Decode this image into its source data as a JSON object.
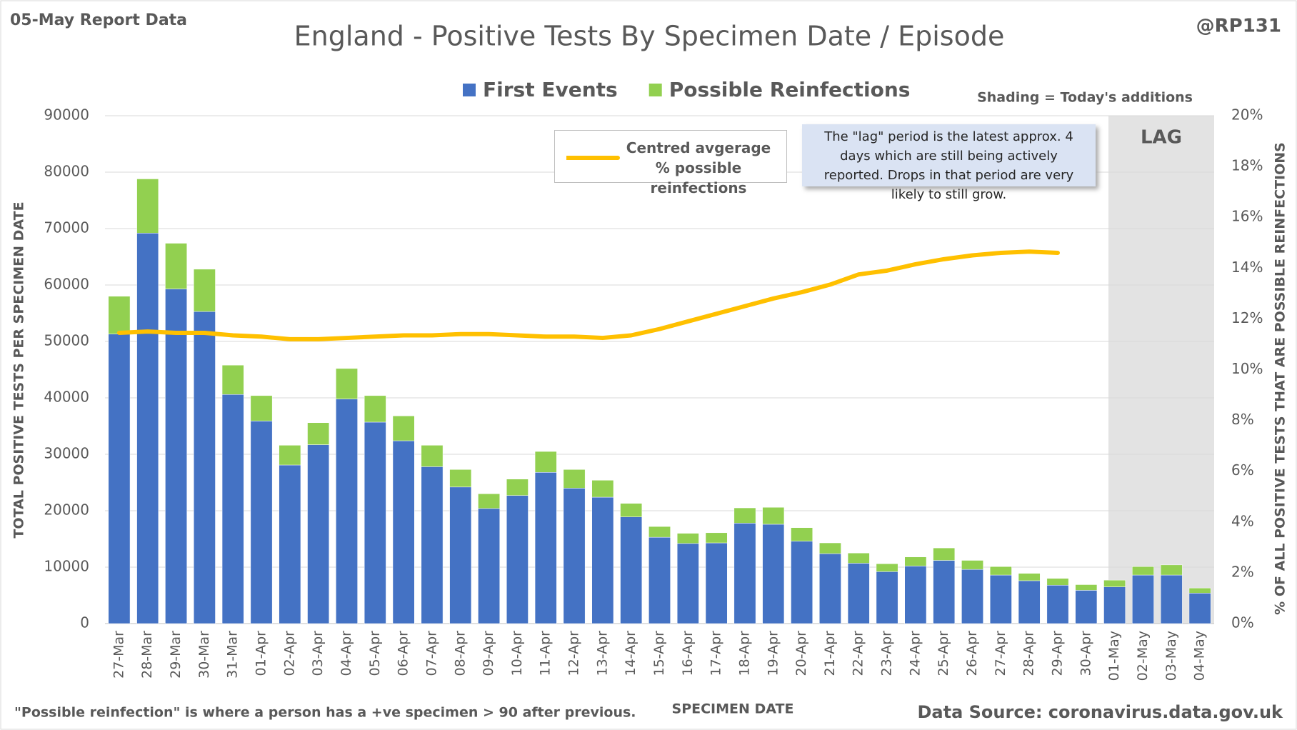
{
  "chart_data": {
    "type": "stacked_bar_line",
    "title": "England - Positive Tests By Specimen Date / Episode",
    "report_label": "05-May Report Data",
    "handle": "@RP131",
    "shading_note": "Shading = Today's additions",
    "lag_label": "LAG",
    "annotation": "The \"lag\" period is the latest approx. 4 days which are still being actively reported. Drops in that period are very likely to still grow.",
    "footnote": "\"Possible reinfection\" is where a person has a +ve specimen > 90 after previous.",
    "source": "Data Source: coronavirus.data.gov.uk",
    "x_label": "SPECIMEN DATE",
    "y_label": "TOTAL POSITIVE TESTS PER SPECIMEN DATE",
    "y2_label": "% OF ALL POSITIVE TESTS THAT ARE POSSIBLE REINFECTIONS",
    "categories": [
      "27-Mar",
      "28-Mar",
      "29-Mar",
      "30-Mar",
      "31-Mar",
      "01-Apr",
      "02-Apr",
      "03-Apr",
      "04-Apr",
      "05-Apr",
      "06-Apr",
      "07-Apr",
      "08-Apr",
      "09-Apr",
      "10-Apr",
      "11-Apr",
      "12-Apr",
      "13-Apr",
      "14-Apr",
      "15-Apr",
      "16-Apr",
      "17-Apr",
      "18-Apr",
      "19-Apr",
      "20-Apr",
      "21-Apr",
      "22-Apr",
      "23-Apr",
      "24-Apr",
      "25-Apr",
      "26-Apr",
      "27-Apr",
      "28-Apr",
      "29-Apr",
      "30-Apr",
      "01-May",
      "02-May",
      "03-May",
      "04-May"
    ],
    "series": [
      {
        "name": "First Events",
        "color": "#4472c4",
        "values": [
          51300,
          69200,
          59300,
          55300,
          40600,
          35900,
          28100,
          31700,
          39800,
          35700,
          32400,
          27800,
          24200,
          20400,
          22700,
          26800,
          24000,
          22400,
          18900,
          15300,
          14200,
          14300,
          17800,
          17600,
          14600,
          12400,
          10700,
          9200,
          10200,
          11200,
          9600,
          8600,
          7600,
          6800,
          5900,
          6500,
          8600,
          8600,
          5400
        ]
      },
      {
        "name": "Possible Reinfections",
        "color": "#92d050",
        "values": [
          6700,
          9600,
          8100,
          7500,
          5200,
          4500,
          3500,
          3900,
          5400,
          4700,
          4400,
          3800,
          3100,
          2600,
          2900,
          3700,
          3300,
          3000,
          2400,
          1900,
          1800,
          1800,
          2700,
          3000,
          2400,
          1900,
          1800,
          1400,
          1600,
          2200,
          1600,
          1500,
          1300,
          1200,
          1000,
          1200,
          1500,
          1800,
          900
        ]
      },
      {
        "name": "Centred avgerage % possible reinfections",
        "color": "#ffc000",
        "axis": "y2",
        "values": [
          11.45,
          11.5,
          11.45,
          11.45,
          11.35,
          11.3,
          11.2,
          11.2,
          11.25,
          11.3,
          11.35,
          11.35,
          11.4,
          11.4,
          11.35,
          11.3,
          11.3,
          11.25,
          11.35,
          11.6,
          11.9,
          12.2,
          12.5,
          12.8,
          13.05,
          13.35,
          13.75,
          13.9,
          14.15,
          14.35,
          14.5,
          14.6,
          14.65,
          14.6,
          null,
          null,
          null,
          null,
          null
        ]
      }
    ],
    "ylim": [
      0,
      90000
    ],
    "yticks": [
      0,
      10000,
      20000,
      30000,
      40000,
      50000,
      60000,
      70000,
      80000,
      90000
    ],
    "y2lim": [
      0,
      20
    ],
    "y2ticks": [
      {
        "value": 0,
        "label": "0%"
      },
      {
        "value": 2,
        "label": "2%"
      },
      {
        "value": 4,
        "label": "4%"
      },
      {
        "value": 6,
        "label": "6%"
      },
      {
        "value": 8,
        "label": "8%"
      },
      {
        "value": 10,
        "label": "10%"
      },
      {
        "value": 12,
        "label": "12%"
      },
      {
        "value": 14,
        "label": "14%"
      },
      {
        "value": 16,
        "label": "16%"
      },
      {
        "value": 18,
        "label": "18%"
      },
      {
        "value": 20,
        "label": "20%"
      }
    ],
    "grid": true
  }
}
